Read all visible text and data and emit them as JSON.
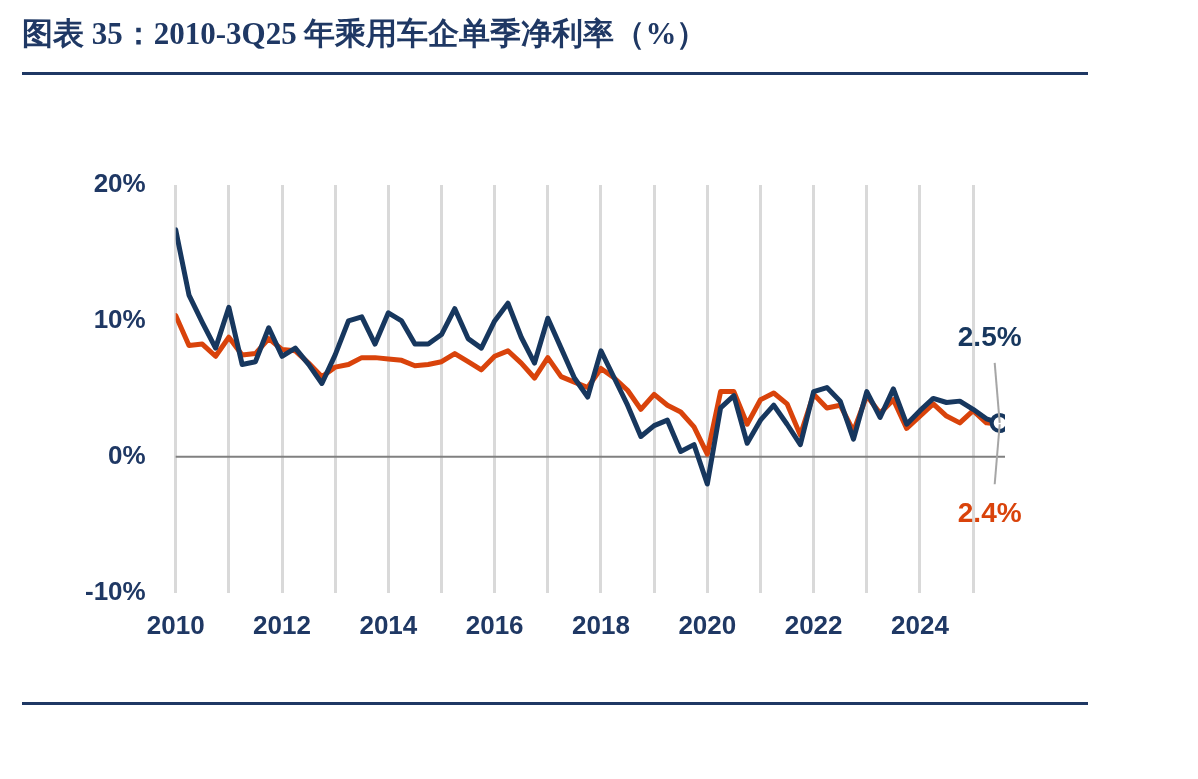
{
  "chart_data": {
    "type": "line",
    "title": "图表 35：2010-3Q25 年乘用车企单季净利率（%）",
    "x": [
      2010,
      2010.25,
      2010.5,
      2010.75,
      2011,
      2011.25,
      2011.5,
      2011.75,
      2012,
      2012.25,
      2012.5,
      2012.75,
      2013,
      2013.25,
      2013.5,
      2013.75,
      2014,
      2014.25,
      2014.5,
      2014.75,
      2015,
      2015.25,
      2015.5,
      2015.75,
      2016,
      2016.25,
      2016.5,
      2016.75,
      2017,
      2017.25,
      2017.5,
      2017.75,
      2018,
      2018.25,
      2018.5,
      2018.75,
      2019,
      2019.25,
      2019.5,
      2019.75,
      2020,
      2020.25,
      2020.5,
      2020.75,
      2021,
      2021.25,
      2021.5,
      2021.75,
      2022,
      2022.25,
      2022.5,
      2022.75,
      2023,
      2023.25,
      2023.5,
      2023.75,
      2024,
      2024.25,
      2024.5,
      2024.75,
      2025,
      2025.25,
      2025.5
    ],
    "series": [
      {
        "color": "#d9430b",
        "values": [
          10.4,
          8.2,
          8.3,
          7.4,
          8.8,
          7.5,
          7.6,
          8.7,
          7.9,
          7.8,
          6.9,
          5.9,
          6.6,
          6.8,
          7.3,
          7.3,
          7.2,
          7.1,
          6.7,
          6.8,
          7.0,
          7.6,
          7.0,
          6.4,
          7.4,
          7.8,
          6.9,
          5.8,
          7.3,
          5.9,
          5.5,
          5.1,
          6.5,
          5.8,
          4.9,
          3.5,
          4.6,
          3.8,
          3.3,
          2.2,
          0.2,
          4.8,
          4.8,
          2.4,
          4.2,
          4.7,
          3.9,
          1.6,
          4.6,
          3.6,
          3.8,
          1.9,
          4.5,
          3.2,
          4.2,
          2.1,
          3.0,
          3.9,
          3.0,
          2.5,
          3.4,
          2.5,
          2.4
        ],
        "value_labels": [
          null,
          null,
          null,
          null,
          null,
          null,
          null,
          null,
          null,
          null,
          null,
          null,
          null,
          null,
          null,
          null,
          null,
          null,
          null,
          null,
          null,
          null,
          null,
          null,
          null,
          null,
          null,
          null,
          null,
          null,
          null,
          null,
          null,
          null,
          null,
          null,
          null,
          null,
          null,
          null,
          null,
          null,
          null,
          null,
          null,
          null,
          null,
          null,
          null,
          null,
          null,
          null,
          null,
          null,
          null,
          null,
          null,
          null,
          null,
          null,
          null,
          null,
          "2.4%"
        ]
      },
      {
        "color": "#17375e",
        "values": [
          16.7,
          11.9,
          9.9,
          8.0,
          11.0,
          6.8,
          7.0,
          9.5,
          7.4,
          8.0,
          6.8,
          5.4,
          7.5,
          10.0,
          10.3,
          8.3,
          10.6,
          10.0,
          8.3,
          8.3,
          9.0,
          10.9,
          8.7,
          8.0,
          10.0,
          11.3,
          8.8,
          6.9,
          10.2,
          8.0,
          5.8,
          4.4,
          7.8,
          5.8,
          3.8,
          1.5,
          2.3,
          2.7,
          0.4,
          0.9,
          -2.0,
          3.6,
          4.5,
          1.0,
          2.7,
          3.8,
          2.4,
          0.9,
          4.8,
          5.1,
          4.1,
          1.3,
          4.8,
          2.9,
          5.0,
          2.4,
          3.4,
          4.3,
          4.0,
          4.1,
          3.5,
          2.8,
          2.5
        ],
        "value_labels": [
          null,
          null,
          null,
          null,
          null,
          null,
          null,
          null,
          null,
          null,
          null,
          null,
          null,
          null,
          null,
          null,
          null,
          null,
          null,
          null,
          null,
          null,
          null,
          null,
          null,
          null,
          null,
          null,
          null,
          null,
          null,
          null,
          null,
          null,
          null,
          null,
          null,
          null,
          null,
          null,
          null,
          null,
          null,
          null,
          null,
          null,
          null,
          null,
          null,
          null,
          null,
          null,
          null,
          null,
          null,
          null,
          null,
          null,
          null,
          null,
          null,
          null,
          "2.5%"
        ]
      },
      {
        "type": "scatter",
        "marker": "circle",
        "color": "#17375e",
        "x": [
          2025.5
        ],
        "values": [
          2.5
        ]
      }
    ],
    "marker": "none",
    "xlim": [
      2010,
      2025.6
    ],
    "xticks": [
      2010,
      {
        "value": 2011,
        "label": null
      },
      2012,
      {
        "value": 2013,
        "label": null
      },
      2014,
      {
        "value": 2015,
        "label": null
      },
      2016,
      {
        "value": 2017,
        "label": null
      },
      2018,
      {
        "value": 2019,
        "label": null
      },
      2020,
      {
        "value": 2021,
        "label": null
      },
      2022,
      {
        "value": 2023,
        "label": null
      },
      2024,
      {
        "value": 2025,
        "label": null
      }
    ],
    "ylim": [
      -10,
      20
    ],
    "yticks": [
      {
        "value": -10,
        "label": "-10%"
      },
      {
        "value": 0,
        "label": "0%"
      },
      {
        "value": 10,
        "label": "10%"
      },
      {
        "value": 20,
        "label": "20%"
      }
    ],
    "grid": "x",
    "ref_lines": [
      {
        "axis": "y",
        "value": 0,
        "color": "#808080"
      }
    ]
  }
}
